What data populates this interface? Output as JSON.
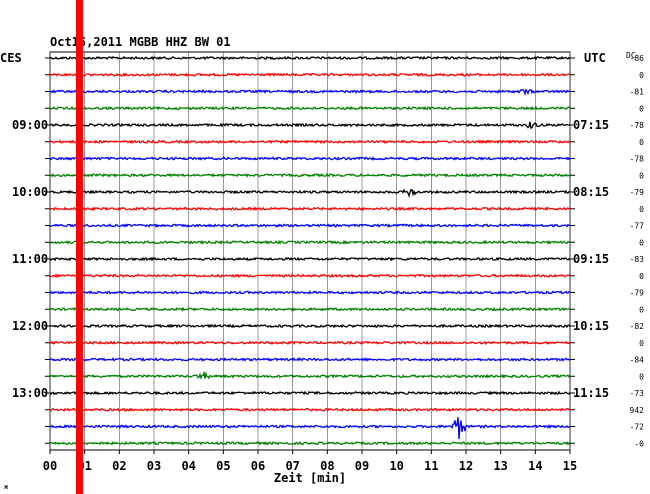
{
  "chart_data": {
    "type": "line",
    "title": "Oct15,2011  MGBB HHZ BW 01",
    "left_zone": "CES",
    "right_zone": "UTC",
    "dc_label": "DC",
    "xlabel": "Zeit [min]",
    "xlim": [
      0,
      15
    ],
    "x_ticks": [
      "00",
      "01",
      "02",
      "03",
      "04",
      "05",
      "06",
      "07",
      "08",
      "09",
      "10",
      "11",
      "12",
      "13",
      "14",
      "15"
    ],
    "left_time_labels": [
      "09:00",
      "10:00",
      "11:00",
      "12:00",
      "13:00"
    ],
    "right_time_labels": [
      "07:15",
      "08:15",
      "09:15",
      "10:15",
      "11:15"
    ],
    "rows_per_hour": 4,
    "first_labeled_row": 4,
    "dc_offsets": [
      "-86",
      "0",
      "-81",
      "0",
      "-78",
      "0",
      "-78",
      "0",
      "-79",
      "0",
      "-77",
      "0",
      "-83",
      "0",
      "-79",
      "0",
      "-82",
      "0",
      "-84",
      "0",
      "-73",
      "942",
      "-72",
      "-0"
    ],
    "trace_colors": [
      "#000000",
      "#ff0000",
      "#0000ff",
      "#008000"
    ],
    "series": [
      {
        "row": 0,
        "color": "#000000",
        "events": []
      },
      {
        "row": 1,
        "color": "#ff0000",
        "events": []
      },
      {
        "row": 2,
        "color": "#0000ff",
        "events": [
          {
            "minute": 13.7,
            "amplitude": 2
          }
        ]
      },
      {
        "row": 3,
        "color": "#008000",
        "events": []
      },
      {
        "row": 4,
        "color": "#000000",
        "events": [
          {
            "minute": 13.9,
            "amplitude": 3
          }
        ]
      },
      {
        "row": 5,
        "color": "#ff0000",
        "events": []
      },
      {
        "row": 6,
        "color": "#0000ff",
        "events": []
      },
      {
        "row": 7,
        "color": "#008000",
        "events": []
      },
      {
        "row": 8,
        "color": "#000000",
        "events": [
          {
            "minute": 10.4,
            "amplitude": 4
          }
        ]
      },
      {
        "row": 9,
        "color": "#ff0000",
        "events": []
      },
      {
        "row": 10,
        "color": "#0000ff",
        "events": []
      },
      {
        "row": 11,
        "color": "#008000",
        "events": []
      },
      {
        "row": 12,
        "color": "#000000",
        "events": []
      },
      {
        "row": 13,
        "color": "#ff0000",
        "events": []
      },
      {
        "row": 14,
        "color": "#0000ff",
        "events": []
      },
      {
        "row": 15,
        "color": "#008000",
        "events": []
      },
      {
        "row": 16,
        "color": "#000000",
        "events": []
      },
      {
        "row": 17,
        "color": "#ff0000",
        "events": []
      },
      {
        "row": 18,
        "color": "#0000ff",
        "events": []
      },
      {
        "row": 19,
        "color": "#008000",
        "events": [
          {
            "minute": 4.4,
            "amplitude": 3
          }
        ]
      },
      {
        "row": 20,
        "color": "#000000",
        "events": []
      },
      {
        "row": 21,
        "color": "#ff0000",
        "events": []
      },
      {
        "row": 22,
        "color": "#0000ff",
        "events": [
          {
            "minute": 11.8,
            "amplitude": 12
          }
        ]
      },
      {
        "row": 23,
        "color": "#008000",
        "events": []
      }
    ],
    "marker": {
      "minute": 0.85,
      "color": "#ff0000"
    },
    "grid": true
  }
}
